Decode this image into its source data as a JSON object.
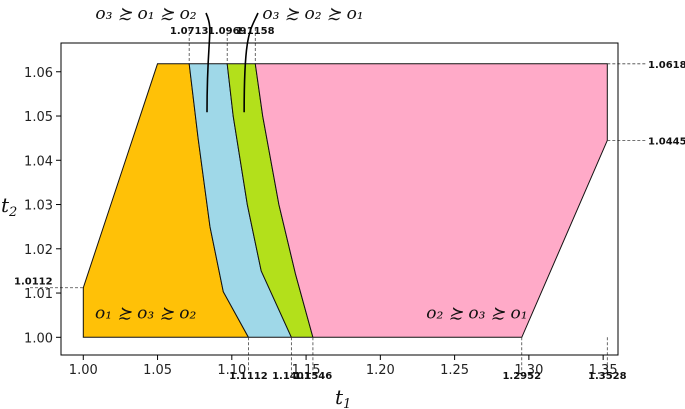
{
  "chart_data": {
    "type": "area",
    "title": "",
    "xlabel": "t",
    "xlabel_sub": "1",
    "ylabel": "t",
    "ylabel_sub": "2",
    "xlim": [
      0.985,
      1.36
    ],
    "ylim": [
      0.996,
      1.0665
    ],
    "grid": false,
    "x_ticks": [
      1.0,
      1.05,
      1.1,
      1.15,
      1.2,
      1.25,
      1.3,
      1.35
    ],
    "x_tick_labels": [
      "1.00",
      "1.05",
      "1.10",
      "1.15",
      "1.20",
      "1.25",
      "1.30",
      "1.35"
    ],
    "y_ticks": [
      1.0,
      1.01,
      1.02,
      1.03,
      1.04,
      1.05,
      1.06
    ],
    "y_tick_labels": [
      "1.00",
      "1.01",
      "1.02",
      "1.03",
      "1.04",
      "1.05",
      "1.06"
    ],
    "regions": [
      {
        "name": "o1 ≿ o3 ≿ o2",
        "color": "#ffc107",
        "polygon": [
          [
            1.0,
            1.0
          ],
          [
            1.0,
            1.0112
          ],
          [
            1.05,
            1.0618
          ],
          [
            1.0713,
            1.0618
          ],
          [
            1.0773,
            1.045
          ],
          [
            1.0853,
            1.025
          ],
          [
            1.0943,
            1.0103
          ],
          [
            1.1112,
            1.0
          ]
        ]
      },
      {
        "name": "o3 ≿ o1 ≿ o2",
        "color": "#9fd8e8",
        "polygon": [
          [
            1.0713,
            1.0618
          ],
          [
            1.0969,
            1.0618
          ],
          [
            1.1009,
            1.05
          ],
          [
            1.1104,
            1.03
          ],
          [
            1.1198,
            1.015
          ],
          [
            1.1401,
            1.0
          ],
          [
            1.1112,
            1.0
          ],
          [
            1.0943,
            1.0103
          ],
          [
            1.0853,
            1.025
          ],
          [
            1.0773,
            1.045
          ]
        ]
      },
      {
        "name": "o3 ≿ o2 ≿ o1",
        "color": "#b3e01b",
        "polygon": [
          [
            1.0969,
            1.0618
          ],
          [
            1.1158,
            1.0618
          ],
          [
            1.1208,
            1.05
          ],
          [
            1.1317,
            1.03
          ],
          [
            1.1429,
            1.0143
          ],
          [
            1.1546,
            1.0
          ],
          [
            1.1401,
            1.0
          ],
          [
            1.1198,
            1.015
          ],
          [
            1.1104,
            1.03
          ],
          [
            1.1009,
            1.05
          ]
        ]
      },
      {
        "name": "o2 ≿ o3 ≿ o1",
        "color": "#ffaac8",
        "polygon": [
          [
            1.1158,
            1.0618
          ],
          [
            1.3528,
            1.0618
          ],
          [
            1.3528,
            1.0445
          ],
          [
            1.2952,
            1.0
          ],
          [
            1.1546,
            1.0
          ],
          [
            1.1429,
            1.0143
          ],
          [
            1.1317,
            1.03
          ],
          [
            1.1208,
            1.05
          ]
        ]
      }
    ],
    "region_labels": [
      {
        "text": "o₁ ≿ o₃ ≿ o₂",
        "x": 1.042,
        "y": 1.0042
      },
      {
        "text": "o₂ ≿ o₃ ≿ o₁",
        "x": 1.265,
        "y": 1.0042
      }
    ],
    "callouts": [
      {
        "text": "o₃ ≿ o₁ ≿ o₂",
        "target": [
          1.0833,
          1.0565
        ]
      },
      {
        "text": "o₃ ≿ o₂ ≿ o₁",
        "target": [
          1.1083,
          1.0565
        ]
      }
    ],
    "x_annotations": [
      {
        "value": 1.0713,
        "label": "1.0713",
        "side": "top"
      },
      {
        "value": 1.0969,
        "label": "1.0969",
        "side": "top"
      },
      {
        "value": 1.1158,
        "label": "1.1158",
        "side": "top"
      },
      {
        "value": 1.1112,
        "label": "1.1112",
        "side": "bottom"
      },
      {
        "value": 1.1401,
        "label": "1.1401",
        "side": "bottom"
      },
      {
        "value": 1.1546,
        "label": "1.1546",
        "side": "bottom"
      },
      {
        "value": 1.2952,
        "label": "1.2952",
        "side": "bottom"
      },
      {
        "value": 1.3528,
        "label": "1.3528",
        "side": "bottom"
      }
    ],
    "y_annotations": [
      {
        "value": 1.0112,
        "label": "1.0112",
        "side": "left"
      },
      {
        "value": 1.0618,
        "label": "1.0618",
        "side": "right"
      },
      {
        "value": 1.0445,
        "label": "1.0445",
        "side": "right"
      }
    ],
    "colors": {
      "orange": "#ffc107",
      "blue": "#9fd8e8",
      "green": "#b3e01b",
      "pink": "#ffaac8"
    }
  }
}
